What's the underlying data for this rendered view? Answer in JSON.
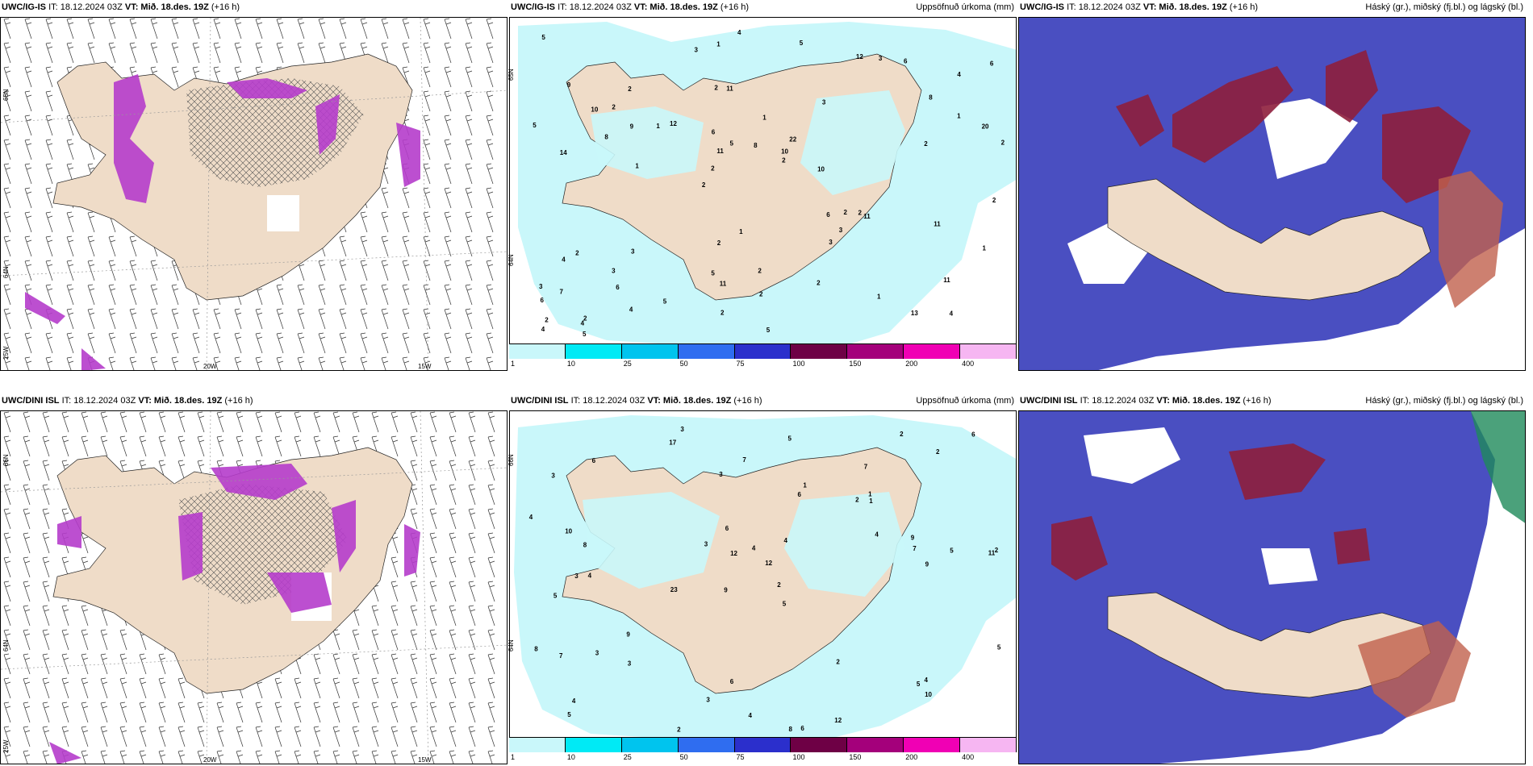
{
  "panels": [
    {
      "model": "UWC/IG-IS",
      "it": "IT: 18.12.2024 03Z",
      "vt_label": "VT:",
      "vt": "Mið. 18.des. 19Z",
      "lead": "(+16 h)",
      "right_title": "",
      "lat_labels": [
        "65N",
        "64N"
      ],
      "lon_labels": [
        "25W",
        "20W",
        "15W"
      ]
    },
    {
      "model": "UWC/IG-IS",
      "it": "IT: 18.12.2024 03Z",
      "vt_label": "VT:",
      "vt": "Mið. 18.des. 19Z",
      "lead": "(+16 h)",
      "right_title": "Uppsöfnuð úrkoma (mm)",
      "lat_labels": [
        "65N",
        "64N"
      ]
    },
    {
      "model": "UWC/IG-IS",
      "it": "IT: 18.12.2024 03Z",
      "vt_label": "VT:",
      "vt": "Mið. 18.des. 19Z",
      "lead": "(+16 h)",
      "right_title": "Háský (gr.), miðský (fj.bl.) og lágský (bl.)"
    },
    {
      "model": "UWC/DINI ISL",
      "it": "IT: 18.12.2024 03Z",
      "vt_label": "VT:",
      "vt": "Mið. 18.des. 19Z",
      "lead": "(+16 h)",
      "right_title": "",
      "lat_labels": [
        "66N",
        "64N"
      ],
      "lon_labels": [
        "25W",
        "20W",
        "15W"
      ]
    },
    {
      "model": "UWC/DINI ISL",
      "it": "IT: 18.12.2024 03Z",
      "vt_label": "VT:",
      "vt": "Mið. 18.des. 19Z",
      "lead": "(+16 h)",
      "right_title": "Uppsöfnuð úrkoma (mm)",
      "lat_labels": [
        "66N",
        "64N"
      ]
    },
    {
      "model": "UWC/DINI ISL",
      "it": "IT: 18.12.2024 03Z",
      "vt_label": "VT:",
      "vt": "Mið. 18.des. 19Z",
      "lead": "(+16 h)",
      "right_title": "Háský (gr.), miðský (fj.bl.) og lágský (bl.)"
    }
  ],
  "colorbar": {
    "labels": [
      "1",
      "10",
      "25",
      "50",
      "75",
      "100",
      "150",
      "200",
      "400"
    ],
    "colors": [
      "#c9f7fa",
      "#00eaf5",
      "#00c4ee",
      "#2f6df0",
      "#2b2fcc",
      "#6e0045",
      "#a4007b",
      "#f000b4",
      "#f6b6f2"
    ]
  },
  "precip_numbers_top": [
    "4",
    "14",
    "4",
    "2",
    "3",
    "2",
    "2",
    "1",
    "2",
    "12",
    "6",
    "6",
    "11",
    "22",
    "11",
    "9",
    "1",
    "2",
    "6",
    "1",
    "2",
    "5",
    "11",
    "2",
    "12",
    "3",
    "13",
    "11",
    "2",
    "5",
    "1",
    "8",
    "3",
    "4",
    "20",
    "10",
    "2",
    "11",
    "2",
    "4",
    "8",
    "6",
    "3",
    "2",
    "3",
    "5",
    "4",
    "2",
    "6",
    "4",
    "1",
    "5",
    "2",
    "3",
    "4",
    "5",
    "3",
    "5",
    "1",
    "2",
    "5",
    "2",
    "9",
    "3",
    "5",
    "10",
    "2",
    "6",
    "2",
    "8",
    "7",
    "10",
    "11",
    "2",
    "2",
    "1",
    "1"
  ],
  "precip_numbers_bottom": [
    "3",
    "7",
    "11",
    "9",
    "5",
    "4",
    "3",
    "2",
    "5",
    "6",
    "12",
    "5",
    "17",
    "23",
    "8",
    "6",
    "6",
    "2",
    "4",
    "9",
    "8",
    "3",
    "2",
    "5",
    "8",
    "10",
    "12",
    "7",
    "4",
    "7",
    "5",
    "1",
    "3",
    "3",
    "2",
    "5",
    "9",
    "3",
    "6",
    "7",
    "4",
    "2",
    "12",
    "6",
    "4",
    "1",
    "10",
    "1",
    "4",
    "2",
    "3",
    "9",
    "4",
    "2",
    "5",
    "3",
    "6",
    "4"
  ],
  "colors": {
    "land": "#efdcc8",
    "precip_light": "#c9f7fa",
    "magenta": "#b53ccb",
    "cloud_low": "#4a4fc1",
    "cloud_mid": "#2f73e6",
    "cloud_high": "#8e1e3c"
  }
}
